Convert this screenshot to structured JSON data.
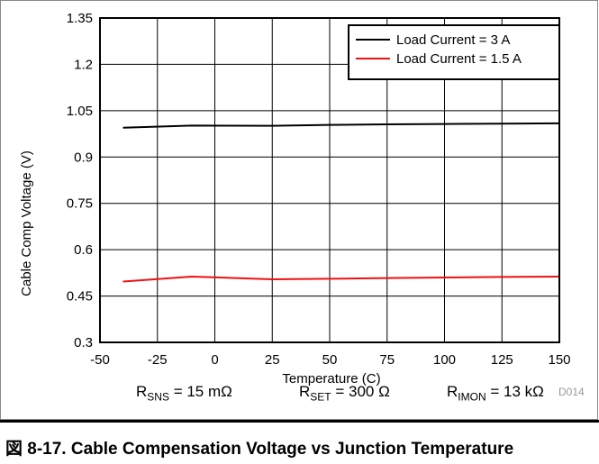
{
  "chart_data": {
    "type": "line",
    "title": "",
    "xlabel": "Temperature (C)",
    "ylabel": "Cable Comp Voltage (V)",
    "xlim": [
      -50,
      150
    ],
    "ylim": [
      0.3,
      1.35
    ],
    "xticks": [
      "-50",
      "-25",
      "0",
      "25",
      "50",
      "75",
      "100",
      "125",
      "150"
    ],
    "yticks": [
      "0.3",
      "0.45",
      "0.6",
      "0.75",
      "0.9",
      "1.05",
      "1.2",
      "1.35"
    ],
    "grid": true,
    "legend_position": "top-right",
    "series": [
      {
        "name": "Load Current = 3 A",
        "color": "#000000",
        "x": [
          -40,
          -10,
          25,
          50,
          75,
          100,
          125,
          150
        ],
        "y": [
          0.995,
          1.002,
          1.001,
          1.004,
          1.006,
          1.007,
          1.008,
          1.009
        ]
      },
      {
        "name": "Load Current = 1.5 A",
        "color": "#ee1111",
        "x": [
          -40,
          -10,
          25,
          50,
          75,
          100,
          125,
          150
        ],
        "y": [
          0.497,
          0.513,
          0.504,
          0.506,
          0.508,
          0.51,
          0.512,
          0.513
        ]
      }
    ]
  },
  "figure_tag": "D014",
  "conditions": {
    "sns": {
      "base": "R",
      "sub": "SNS",
      "value": " = 15 mΩ"
    },
    "set": {
      "base": "R",
      "sub": "SET",
      "value": " = 300 Ω"
    },
    "imon": {
      "base": "R",
      "sub": "IMON",
      "value": " = 13 kΩ"
    }
  },
  "caption": "図 8-17. Cable Compensation Voltage vs Junction Temperature"
}
